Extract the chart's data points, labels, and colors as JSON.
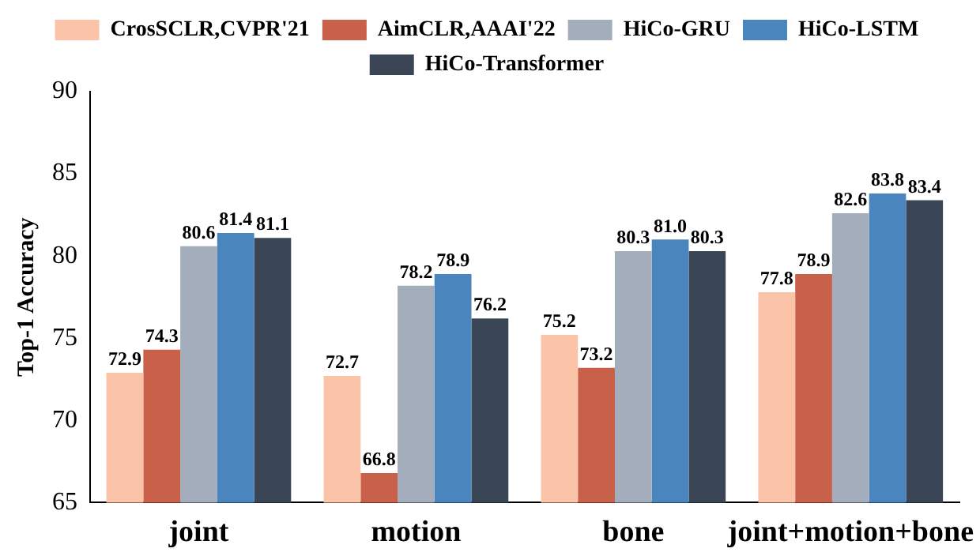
{
  "chart_data": {
    "type": "bar",
    "ylabel": "Top-1 Accuracy",
    "categories": [
      "joint",
      "motion",
      "bone",
      "joint+motion+bone"
    ],
    "series": [
      {
        "name": "CrosSCLR,CVPR'21",
        "color": "#fbc4a8",
        "values": [
          72.9,
          72.7,
          75.2,
          77.8
        ]
      },
      {
        "name": "AimCLR,AAAI'22",
        "color": "#c9604a",
        "values": [
          74.3,
          66.8,
          73.2,
          78.9
        ]
      },
      {
        "name": "HiCo-GRU",
        "color": "#a3adbb",
        "values": [
          80.6,
          78.2,
          80.3,
          82.6
        ]
      },
      {
        "name": "HiCo-LSTM",
        "color": "#4a86bd",
        "values": [
          81.4,
          78.9,
          81.0,
          83.8
        ],
        "value_labels": [
          "81.4",
          "78.9",
          "81.0",
          "83.8"
        ]
      },
      {
        "name": "HiCo-Transformer",
        "color": "#3a4656",
        "values": [
          81.1,
          76.2,
          80.3,
          83.4
        ]
      }
    ],
    "ylim": [
      65,
      90
    ],
    "yticks": [
      65,
      70,
      75,
      80,
      85,
      90
    ],
    "grid": false,
    "legend": "top",
    "data_labels": true
  }
}
